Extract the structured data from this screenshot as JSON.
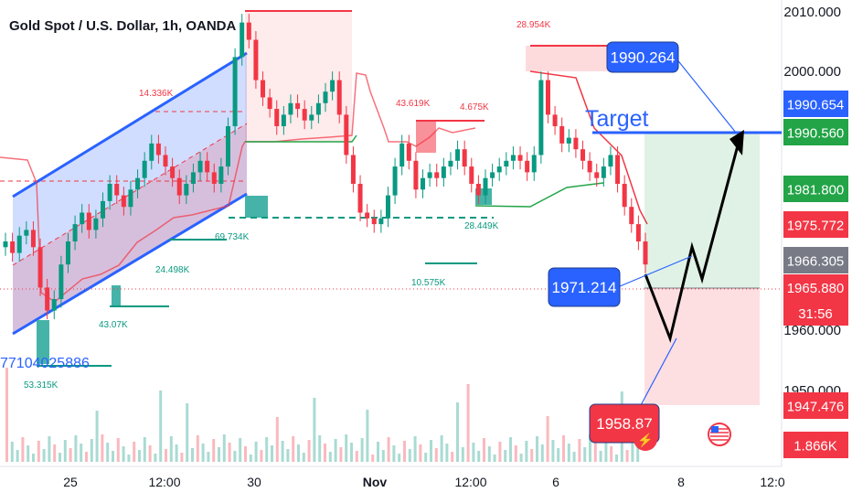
{
  "title": "Gold Spot / U.S. Dollar, 1h, OANDA",
  "chart_data": {
    "type": "candlestick",
    "title": "Gold Spot / U.S. Dollar, 1h, OANDA",
    "y_ticks": [
      "2010.000",
      "2000.000",
      "1960.000",
      "1950.000"
    ],
    "x_ticks": [
      "25",
      "12:00",
      "30",
      "Nov",
      "12:00",
      "6",
      "8",
      "12:0"
    ],
    "price_labels": [
      {
        "value": "1990.654",
        "color": "#2962ff"
      },
      {
        "value": "1990.560",
        "color": "#22a447"
      },
      {
        "value": "1981.800",
        "color": "#22a447"
      },
      {
        "value": "1975.772",
        "color": "#f23645"
      },
      {
        "value": "1966.305",
        "color": "#787b86"
      },
      {
        "value": "1965.880",
        "color": "#f23645"
      },
      {
        "value": "31:56",
        "color": "#f23645"
      },
      {
        "value": "1947.476",
        "color": "#f23645"
      },
      {
        "value": "1.866K",
        "color": "#f23645"
      }
    ],
    "callouts": [
      "1990.264",
      "1971.214",
      "1958.87"
    ],
    "target_label": "Target",
    "annotation_labels": [
      "14.336K",
      "43.619K",
      "4.675K",
      "28.954K",
      "69.734K",
      "24.498K",
      "43.07K",
      "53.315K",
      "10.575K",
      "28.449K"
    ],
    "cut_label": "77104025886",
    "closes": [
      1970,
      1968,
      1971,
      1972,
      1969,
      1962,
      1958,
      1960,
      1966,
      1970,
      1973,
      1975,
      1972,
      1974,
      1977,
      1980,
      1978,
      1976,
      1979,
      1981,
      1984,
      1987,
      1985,
      1983,
      1981,
      1978,
      1980,
      1982,
      1984,
      1982,
      1980,
      1983,
      1990,
      2002,
      2008,
      2005,
      1998,
      1995,
      1993,
      1990,
      1992,
      1994,
      1993,
      1991,
      1992,
      1994,
      1996,
      1998,
      1992,
      1985,
      1980,
      1975,
      1974,
      1973,
      1974,
      1978,
      1983,
      1987,
      1984,
      1979,
      1981,
      1982,
      1981,
      1983,
      1984,
      1986,
      1983,
      1980,
      1978,
      1981,
      1982,
      1983,
      1984,
      1985,
      1984,
      1982,
      1985,
      1998,
      1992,
      1990,
      1987,
      1988,
      1986,
      1984,
      1982,
      1981,
      1983,
      1985,
      1980,
      1976,
      1973,
      1970,
      1966
    ]
  }
}
